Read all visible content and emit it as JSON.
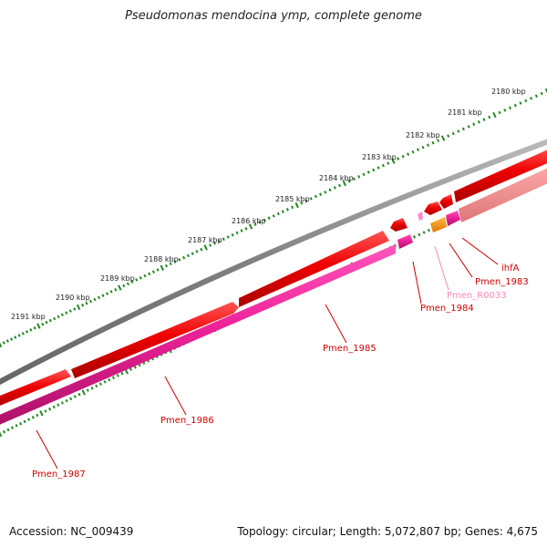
{
  "title": "Pseudomonas mendocina ymp, complete genome",
  "ruler": {
    "labels": [
      "2180 kbp",
      "2181 kbp",
      "2182 kbp",
      "2183 kbp",
      "2184 kbp",
      "2185 kbp",
      "2186 kbp",
      "2187 kbp",
      "2188 kbp",
      "2189 kbp",
      "2190 kbp",
      "2191 kbp"
    ]
  },
  "genes": [
    {
      "label": "ihfA",
      "color": "#cc0000"
    },
    {
      "label": "Pmen_1983",
      "color": "#cc0000"
    },
    {
      "label": "Pmen_R0033",
      "color": "#ff88bb"
    },
    {
      "label": "Pmen_1984",
      "color": "#cc0000"
    },
    {
      "label": "Pmen_1985",
      "color": "#cc0000"
    },
    {
      "label": "Pmen_1986",
      "color": "#cc0000"
    },
    {
      "label": "Pmen_1987",
      "color": "#cc0000"
    }
  ],
  "colors": {
    "backbone": "#808080",
    "forward_gene": "#ee0000",
    "reverse_gene": "#ee2299",
    "rna_gene": "#ee8800",
    "faded_gene": "#ee8888",
    "ticks": "#228822"
  },
  "footer": {
    "accession": "Accession: NC_009439",
    "stats": "Topology: circular; Length: 5,072,807 bp; Genes: 4,675"
  }
}
